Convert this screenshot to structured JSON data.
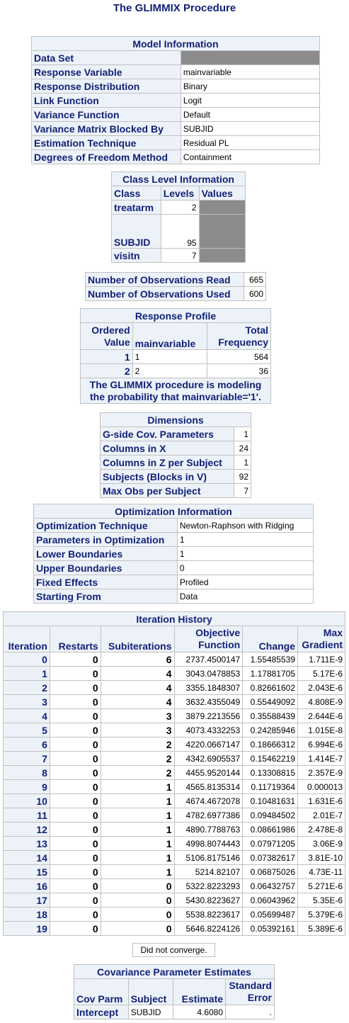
{
  "title": "The GLIMMIX Procedure",
  "model_info": {
    "header": "Model Information",
    "rows": [
      {
        "label": "Data Set",
        "value": ""
      },
      {
        "label": "Response Variable",
        "value": "mainvariable"
      },
      {
        "label": "Response Distribution",
        "value": "Binary"
      },
      {
        "label": "Link Function",
        "value": "Logit"
      },
      {
        "label": "Variance Function",
        "value": "Default"
      },
      {
        "label": "Variance Matrix Blocked By",
        "value": "SUBJID"
      },
      {
        "label": "Estimation Technique",
        "value": "Residual PL"
      },
      {
        "label": "Degrees of Freedom Method",
        "value": "Containment"
      }
    ]
  },
  "class_level": {
    "header": "Class Level Information",
    "columns": [
      "Class",
      "Levels",
      "Values"
    ],
    "rows": [
      {
        "class": "treatarm",
        "levels": "2"
      },
      {
        "class": "SUBJID",
        "levels": "95"
      },
      {
        "class": "visitn",
        "levels": "7"
      }
    ]
  },
  "observations": {
    "rows": [
      {
        "label": "Number of Observations Read",
        "value": "665"
      },
      {
        "label": "Number of Observations Used",
        "value": "600"
      }
    ]
  },
  "response_profile": {
    "header": "Response Profile",
    "col1": [
      "Ordered",
      "Value"
    ],
    "col2": "mainvariable",
    "col3": [
      "Total",
      "Frequency"
    ],
    "rows": [
      {
        "ordered": "1",
        "value": "1",
        "freq": "564"
      },
      {
        "ordered": "2",
        "value": "2",
        "freq": "36"
      }
    ],
    "note": [
      "The GLIMMIX procedure is modeling",
      "the probability that mainvariable='1'."
    ]
  },
  "dimensions": {
    "header": "Dimensions",
    "rows": [
      {
        "label": "G-side Cov. Parameters",
        "value": "1"
      },
      {
        "label": "Columns in X",
        "value": "24"
      },
      {
        "label": "Columns in Z per Subject",
        "value": "1"
      },
      {
        "label": "Subjects (Blocks in V)",
        "value": "92"
      },
      {
        "label": "Max Obs per Subject",
        "value": "7"
      }
    ]
  },
  "optimization": {
    "header": "Optimization Information",
    "rows": [
      {
        "label": "Optimization Technique",
        "value": "Newton-Raphson with Ridging"
      },
      {
        "label": "Parameters in Optimization",
        "value": "1"
      },
      {
        "label": "Lower Boundaries",
        "value": "1"
      },
      {
        "label": "Upper Boundaries",
        "value": "0"
      },
      {
        "label": "Fixed Effects",
        "value": "Profiled"
      },
      {
        "label": "Starting From",
        "value": "Data"
      }
    ]
  },
  "iteration_history": {
    "header": "Iteration History",
    "columns": [
      "Iteration",
      "Restarts",
      "Subiterations",
      [
        "Objective",
        "Function"
      ],
      "Change",
      [
        "Max",
        "Gradient"
      ]
    ],
    "rows": [
      [
        "0",
        "0",
        "6",
        "2737.4500147",
        "1.55485539",
        "1.711E-9"
      ],
      [
        "1",
        "0",
        "4",
        "3043.0478853",
        "1.17881705",
        "5.17E-6"
      ],
      [
        "2",
        "0",
        "4",
        "3355.1848307",
        "0.82661602",
        "2.043E-6"
      ],
      [
        "3",
        "0",
        "4",
        "3632.4355049",
        "0.55449092",
        "4.808E-9"
      ],
      [
        "4",
        "0",
        "3",
        "3879.2213556",
        "0.35588439",
        "2.644E-6"
      ],
      [
        "5",
        "0",
        "3",
        "4073.4332253",
        "0.24285946",
        "1.015E-8"
      ],
      [
        "6",
        "0",
        "2",
        "4220.0667147",
        "0.18666312",
        "6.994E-6"
      ],
      [
        "7",
        "0",
        "2",
        "4342.6905537",
        "0.15462219",
        "1.414E-7"
      ],
      [
        "8",
        "0",
        "2",
        "4455.9520144",
        "0.13308815",
        "2.357E-9"
      ],
      [
        "9",
        "0",
        "1",
        "4565.8135314",
        "0.11719364",
        "0.000013"
      ],
      [
        "10",
        "0",
        "1",
        "4674.4672078",
        "0.10481631",
        "1.631E-6"
      ],
      [
        "11",
        "0",
        "1",
        "4782.6977386",
        "0.09484502",
        "2.01E-7"
      ],
      [
        "12",
        "0",
        "1",
        "4890.7788763",
        "0.08661986",
        "2.478E-8"
      ],
      [
        "13",
        "0",
        "1",
        "4998.8074443",
        "0.07971205",
        "3.06E-9"
      ],
      [
        "14",
        "0",
        "1",
        "5106.8175146",
        "0.07382617",
        "3.81E-10"
      ],
      [
        "15",
        "0",
        "1",
        "5214.82107",
        "0.06875026",
        "4.73E-11"
      ],
      [
        "16",
        "0",
        "0",
        "5322.8223293",
        "0.06432757",
        "5.271E-6"
      ],
      [
        "17",
        "0",
        "0",
        "5430.8223627",
        "0.06043962",
        "5.35E-6"
      ],
      [
        "18",
        "0",
        "0",
        "5538.8223617",
        "0.05699487",
        "5.379E-6"
      ],
      [
        "19",
        "0",
        "0",
        "5646.8224126",
        "0.05392161",
        "5.389E-6"
      ]
    ]
  },
  "convergence_note": "Did not converge.",
  "cov_parm": {
    "header": "Covariance Parameter Estimates",
    "columns": [
      "Cov Parm",
      "Subject",
      "Estimate",
      [
        "Standard",
        "Error"
      ]
    ],
    "rows": [
      {
        "parm": "Intercept",
        "subject": "SUBJID",
        "estimate": "4.6080",
        "stderr": "."
      }
    ]
  },
  "colors": {
    "header_bg": "#edf2f9",
    "header_text": "#112277",
    "border": "#c1c1c1",
    "masked": "#8c8c8c"
  }
}
